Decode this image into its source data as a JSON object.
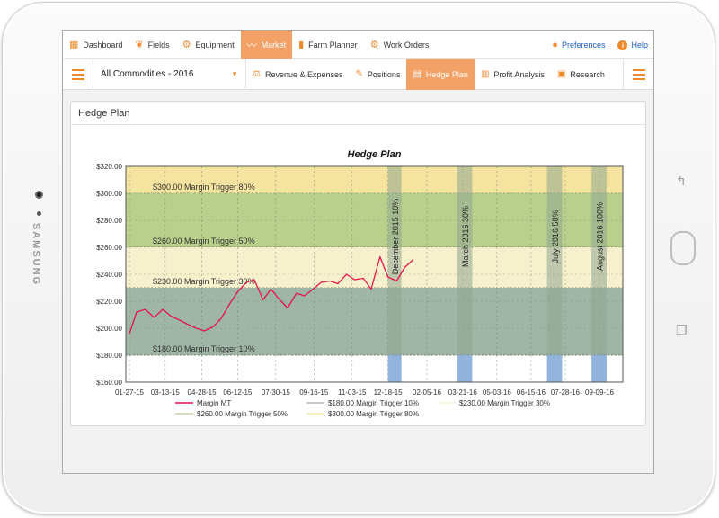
{
  "device": {
    "brand": "SAMSUNG"
  },
  "topnav": {
    "items": [
      {
        "label": "Dashboard",
        "icon": "grid-icon"
      },
      {
        "label": "Fields",
        "icon": "leaf-icon"
      },
      {
        "label": "Equipment",
        "icon": "tractor-icon"
      },
      {
        "label": "Market",
        "icon": "chart-line-icon",
        "active": true
      },
      {
        "label": "Farm Planner",
        "icon": "bookmark-icon"
      },
      {
        "label": "Work Orders",
        "icon": "gears-icon"
      }
    ],
    "preferences": "Preferences",
    "help": "Help"
  },
  "subnav": {
    "commodity_select": "All Commodities - 2016",
    "items": [
      {
        "label": "Revenue & Expenses",
        "icon": "scale-icon"
      },
      {
        "label": "Positions",
        "icon": "pen-icon"
      },
      {
        "label": "Hedge Plan",
        "icon": "book-icon",
        "active": true
      },
      {
        "label": "Profit Analysis",
        "icon": "bar-chart-icon"
      },
      {
        "label": "Research",
        "icon": "box-icon"
      }
    ]
  },
  "panel": {
    "title": "Hedge Plan"
  },
  "colors": {
    "accent": "#f2a266",
    "band_300": "#f5e4a0",
    "band_260": "#b9cf8c",
    "band_230": "#f7f0cc",
    "band_180": "#9fb5a5",
    "margin_line": "#e0174a",
    "window_grey": "#8fa58f",
    "window_blue": "#7fa6d6"
  },
  "chart_data": {
    "type": "line",
    "title": "Hedge Plan",
    "ylim": [
      160,
      320
    ],
    "yticks": [
      "$160.00",
      "$180.00",
      "$200.00",
      "$220.00",
      "$240.00",
      "$260.00",
      "$280.00",
      "$300.00",
      "$320.00"
    ],
    "xticks": [
      "01-27-15",
      "03-13-15",
      "04-28-15",
      "06-12-15",
      "07-30-15",
      "09-16-15",
      "11-03-15",
      "12-18-15",
      "02-05-16",
      "03-21-16",
      "05-03-16",
      "06-15-16",
      "07-28-16",
      "09-09-16"
    ],
    "grid": true,
    "bands": [
      {
        "from": 300,
        "to": 320,
        "label": "$300.00 Margin Trigger  80%"
      },
      {
        "from": 260,
        "to": 300,
        "label": "$260.00 Margin Trigger  50%"
      },
      {
        "from": 230,
        "to": 260,
        "label": "$230.00 Margin Trigger  30%"
      },
      {
        "from": 180,
        "to": 230,
        "label": "$180.00 Margin Trigger  10%"
      }
    ],
    "windows": [
      {
        "label": "December 2015 10%",
        "start": "12-18-15",
        "end": "01-04-16"
      },
      {
        "label": "March 2016 30%",
        "start": "03-14-16",
        "end": "04-02-16"
      },
      {
        "label": "July 2016 50%",
        "start": "07-05-16",
        "end": "07-24-16"
      },
      {
        "label": "August 2016 100%",
        "start": "08-30-16",
        "end": "09-18-16"
      }
    ],
    "series": [
      {
        "name": "Margin MT",
        "x": [
          "01-27-15",
          "02-05-15",
          "02-16-15",
          "02-27-15",
          "03-10-15",
          "03-20-15",
          "03-31-15",
          "04-10-15",
          "04-21-15",
          "05-01-15",
          "05-12-15",
          "05-22-15",
          "06-02-15",
          "06-12-15",
          "06-23-15",
          "07-03-15",
          "07-14-15",
          "07-24-15",
          "08-04-15",
          "08-14-15",
          "08-25-15",
          "09-04-15",
          "09-15-15",
          "09-25-15",
          "10-06-15",
          "10-16-15",
          "10-27-15",
          "11-06-15",
          "11-17-15",
          "11-27-15",
          "12-08-15",
          "12-18-15",
          "12-29-15",
          "01-08-16",
          "01-19-16"
        ],
        "y": [
          196,
          212,
          214,
          208,
          214,
          209,
          206,
          203,
          200,
          198,
          201,
          207,
          218,
          227,
          234,
          236,
          221,
          229,
          221,
          215,
          226,
          224,
          229,
          234,
          235,
          233,
          240,
          236,
          237,
          229,
          253,
          238,
          235,
          245,
          251
        ]
      }
    ],
    "legend": [
      {
        "name": "Margin MT",
        "type": "line"
      },
      {
        "name": "$180.00 Margin Trigger  10%",
        "type": "band"
      },
      {
        "name": "$230.00 Margin Trigger  30%",
        "type": "band"
      },
      {
        "name": "$260.00 Margin Trigger  50%",
        "type": "band"
      },
      {
        "name": "$300.00 Margin Trigger  80%",
        "type": "band"
      }
    ],
    "legend_position": "bottom"
  }
}
